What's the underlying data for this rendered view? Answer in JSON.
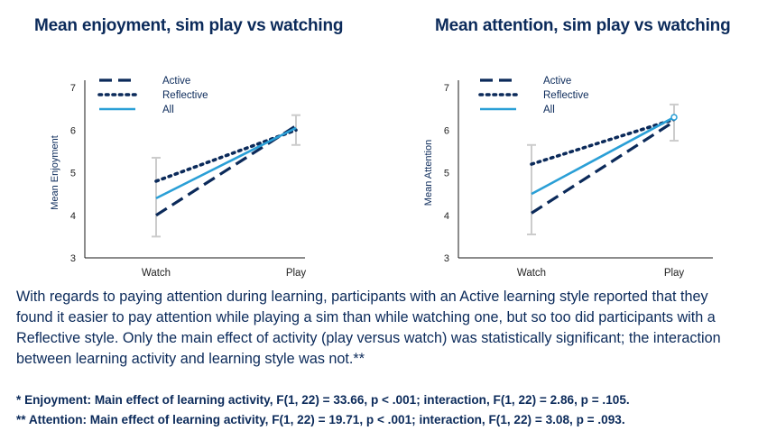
{
  "text": {
    "paragraph": "With regards to paying attention during learning, participants with an Active learning style reported that they found it easier to pay attention while playing a sim than while watching one, but so too did participants with a Reflective style. Only the main effect of activity (play versus watch) was statistically significant; the interaction between learning activity and learning style was not.**",
    "footnote_1": "* Enjoyment: Main effect of learning activity, F(1, 22) = 33.66, p < .001; interaction, F(1, 22) = 2.86, p = .105.",
    "footnote_2": "** Attention: Main effect of learning activity, F(1, 22) = 19.71, p < .001; interaction, F(1, 22) = 3.08, p = .093."
  },
  "colors": {
    "active": "#0b2a5a",
    "reflective": "#0b2a5a",
    "all": "#2a9fd6",
    "error_bars": "#cccccc",
    "axis": "#1a1a1a"
  },
  "chart_data": [
    {
      "type": "line",
      "title": "Mean enjoyment, sim play vs watching",
      "xlabel": "",
      "ylabel": "Mean Enjoyment",
      "categories": [
        "Watch",
        "Play"
      ],
      "ylim": [
        3,
        7
      ],
      "yticks": [
        3,
        4,
        5,
        6,
        7
      ],
      "grid": false,
      "legend": "top-left",
      "series": [
        {
          "name": "Active",
          "style": "dashed",
          "values": [
            4.0,
            6.1
          ]
        },
        {
          "name": "Reflective",
          "style": "dotted",
          "values": [
            4.8,
            6.0
          ]
        },
        {
          "name": "All",
          "style": "solid",
          "values": [
            4.4,
            6.05
          ]
        }
      ],
      "error_bars": [
        {
          "category": "Watch",
          "low": 3.5,
          "high": 5.35
        },
        {
          "category": "Play",
          "low": 5.65,
          "high": 6.35
        }
      ]
    },
    {
      "type": "line",
      "title": "Mean attention, sim play vs watching",
      "xlabel": "",
      "ylabel": "Mean Attention",
      "categories": [
        "Watch",
        "Play"
      ],
      "ylim": [
        3,
        7
      ],
      "yticks": [
        3,
        4,
        5,
        6,
        7
      ],
      "grid": false,
      "legend": "top-left",
      "series": [
        {
          "name": "Active",
          "style": "dashed",
          "values": [
            4.05,
            6.2
          ]
        },
        {
          "name": "Reflective",
          "style": "dotted",
          "values": [
            5.2,
            6.25
          ]
        },
        {
          "name": "All",
          "style": "solid",
          "values": [
            4.5,
            6.3
          ]
        }
      ],
      "error_bars": [
        {
          "category": "Watch",
          "low": 3.55,
          "high": 5.65
        },
        {
          "category": "Play",
          "low": 5.75,
          "high": 6.6
        }
      ]
    }
  ]
}
